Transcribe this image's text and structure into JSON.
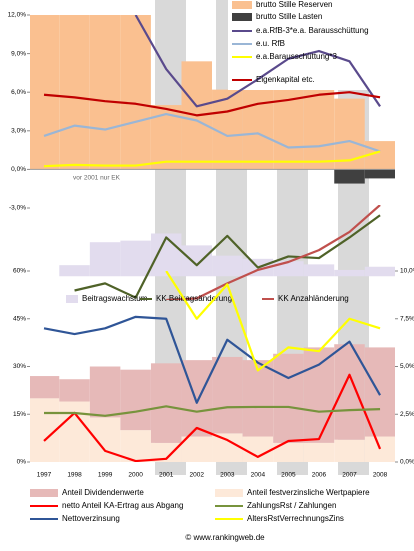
{
  "chart_data": [
    {
      "type": "combo",
      "ylim": [
        -3,
        12
      ],
      "yticks": [
        {
          "value": 12,
          "label": "12,0%"
        },
        {
          "value": 9,
          "label": "9,0%"
        },
        {
          "value": 6,
          "label": "6,0%"
        },
        {
          "value": 3,
          "label": "3,0%"
        },
        {
          "value": 0,
          "label": "0,0%"
        },
        {
          "value": -3,
          "label": "-3,0%"
        }
      ],
      "annotation": "vor 2001 nur EK",
      "series": [
        {
          "name": "brutto Stille Reserven",
          "kind": "bar",
          "color": "#fac090",
          "values": [
            12,
            12,
            12,
            12,
            5,
            8.4,
            6.2,
            7.9,
            8.7,
            8.8,
            5.5,
            2.2
          ]
        },
        {
          "name": "brutto Stille Lasten",
          "kind": "bar",
          "color": "#404040",
          "values": [
            null,
            null,
            null,
            null,
            null,
            null,
            null,
            null,
            null,
            null,
            -1.1,
            -0.7
          ]
        },
        {
          "name": "e.a.RfB-3*e.a. Barausschüttung",
          "kind": "line",
          "color": "#5a4a8c",
          "values": [
            null,
            null,
            null,
            12,
            7.8,
            4.9,
            5.5,
            7,
            8.6,
            9.2,
            8.4,
            4.9
          ]
        },
        {
          "name": "e.u. RfB",
          "kind": "line",
          "color": "#9ab6d6",
          "values": [
            2.6,
            3.4,
            3.1,
            3.7,
            4.3,
            3.8,
            2.6,
            2.8,
            1.7,
            1.8,
            2.2,
            1.4
          ]
        },
        {
          "name": "e.a.Barausschüttung*3",
          "kind": "line",
          "color": "#ffff00",
          "values": [
            0.25,
            0.35,
            0.3,
            0.3,
            0.6,
            0.6,
            0.6,
            0.6,
            0.6,
            0.6,
            0.7,
            1.4
          ]
        },
        {
          "name": "Eigenkapital etc.",
          "kind": "line",
          "color": "#c00000",
          "values": [
            5.8,
            5.6,
            5.3,
            5.1,
            4.7,
            4.2,
            4.5,
            5.1,
            5.4,
            5.8,
            6,
            5.6
          ]
        }
      ]
    },
    {
      "type": "combo",
      "ylim": [
        -3,
        9
      ],
      "series": [
        {
          "name": "Beitragswachstum",
          "kind": "bar",
          "color": "#e2dcee",
          "values": [
            null,
            1.4,
            4.3,
            4.5,
            5.4,
            3.9,
            2.6,
            2.2,
            1.9,
            1.5,
            0.8,
            1.2
          ]
        },
        {
          "name": "KK Beitragsänderung",
          "kind": "line",
          "color": "#4f6228",
          "values": [
            null,
            -1.8,
            -0.9,
            -2.7,
            4.9,
            1.4,
            5.1,
            1.1,
            2.5,
            2.3,
            4.9,
            7.7
          ]
        },
        {
          "name": "KK Anzahländerung",
          "kind": "line",
          "color": "#c0504d",
          "values": [
            null,
            null,
            null,
            null,
            -3,
            -2.8,
            -0.9,
            0.8,
            1.8,
            3.3,
            5.6,
            9
          ]
        }
      ]
    },
    {
      "type": "combo",
      "stacked": true,
      "categories": [
        "1997",
        "1998",
        "1999",
        "2000",
        "2001",
        "2002",
        "2003",
        "2004",
        "2005",
        "2006",
        "2007",
        "2008"
      ],
      "ylim": [
        0,
        60
      ],
      "yticks": [
        {
          "value": 60,
          "label": "60%"
        },
        {
          "value": 45,
          "label": "45%"
        },
        {
          "value": 30,
          "label": "30%"
        },
        {
          "value": 15,
          "label": "15%"
        },
        {
          "value": 0,
          "label": "0%"
        }
      ],
      "y2lim": [
        0,
        10
      ],
      "y2ticks": [
        {
          "value": 10,
          "label": "10,0%"
        },
        {
          "value": 7.5,
          "label": "7,5%"
        },
        {
          "value": 5,
          "label": "5,0%"
        },
        {
          "value": 2.5,
          "label": "2,5%"
        },
        {
          "value": 0,
          "label": "0,0%"
        }
      ],
      "series": [
        {
          "name": "Anteil festverzinsliche Wertpapiere",
          "kind": "bar",
          "color": "#fde9d9",
          "values": [
            20,
            19,
            14,
            10,
            6,
            8,
            9,
            8,
            6,
            6,
            7,
            8
          ]
        },
        {
          "name": "Anteil Dividendenwerte",
          "kind": "bar",
          "color": "#e6b9b8",
          "values": [
            7,
            7,
            16,
            19,
            25,
            24,
            24,
            24,
            28,
            30,
            30,
            28
          ]
        },
        {
          "name": "netto Anteil KA-Ertrag aus Abgang",
          "kind": "line",
          "color": "#ff0000",
          "values": [
            6.6,
            15.4,
            3.5,
            0.3,
            1,
            10.7,
            6.9,
            1.6,
            6.6,
            7.2,
            27.4,
            4.1
          ]
        },
        {
          "name": "ZahlungsRst / Zahlungen",
          "kind": "line",
          "color": "#77933c",
          "values": [
            15.4,
            15.4,
            14.5,
            15.8,
            17.5,
            15.8,
            17.2,
            17.3,
            17.3,
            15.8,
            16.3,
            16.6
          ]
        },
        {
          "name": "Nettoverzinsung",
          "kind": "line",
          "axis": "y2",
          "color": "#2f5597",
          "values": [
            7,
            6.7,
            7,
            7.6,
            7.5,
            3.1,
            6.4,
            5.2,
            4.4,
            5.1,
            6.3,
            3.5
          ]
        },
        {
          "name": "AltersRstVerrechnungsZins",
          "kind": "line",
          "axis": "y2",
          "color": "#ffff00",
          "values": [
            null,
            null,
            null,
            null,
            10,
            7.5,
            9.3,
            4.8,
            6,
            5.8,
            7.5,
            7
          ]
        }
      ]
    }
  ],
  "footer": "© www.rankingweb.de"
}
